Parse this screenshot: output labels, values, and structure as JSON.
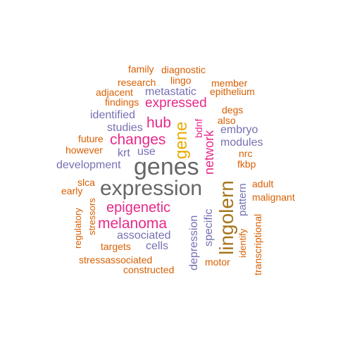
{
  "palette": {
    "orange": "#d95f02",
    "purple": "#7570b3",
    "magenta": "#e7298a",
    "gold": "#e6ab02",
    "olive": "#a6761d",
    "gray": "#666666"
  },
  "words": [
    {
      "id": "genes",
      "text": "genes",
      "color": "gray"
    },
    {
      "id": "expression",
      "text": "expression",
      "color": "gray"
    },
    {
      "id": "lingolern",
      "text": "lingolern",
      "color": "olive"
    },
    {
      "id": "gene",
      "text": "gene",
      "color": "gold"
    },
    {
      "id": "changes",
      "text": "changes",
      "color": "magenta"
    },
    {
      "id": "hub",
      "text": "hub",
      "color": "magenta"
    },
    {
      "id": "expressed",
      "text": "expressed",
      "color": "magenta"
    },
    {
      "id": "network",
      "text": "network",
      "color": "magenta"
    },
    {
      "id": "epigenetic",
      "text": "epigenetic",
      "color": "magenta"
    },
    {
      "id": "melanoma",
      "text": "melanoma",
      "color": "magenta"
    },
    {
      "id": "metastatic",
      "text": "metastatic",
      "color": "purple"
    },
    {
      "id": "identified",
      "text": "identified",
      "color": "purple"
    },
    {
      "id": "studies",
      "text": "studies",
      "color": "purple"
    },
    {
      "id": "krt",
      "text": "krt",
      "color": "purple"
    },
    {
      "id": "use",
      "text": "use",
      "color": "purple"
    },
    {
      "id": "development",
      "text": "development",
      "color": "purple"
    },
    {
      "id": "embryo",
      "text": "embryo",
      "color": "purple"
    },
    {
      "id": "modules",
      "text": "modules",
      "color": "purple"
    },
    {
      "id": "associated",
      "text": "associated",
      "color": "purple"
    },
    {
      "id": "cells",
      "text": "cells",
      "color": "purple"
    },
    {
      "id": "depression",
      "text": "depression",
      "color": "purple"
    },
    {
      "id": "specific",
      "text": "specific",
      "color": "purple"
    },
    {
      "id": "pattern",
      "text": "pattern",
      "color": "purple"
    },
    {
      "id": "bdnf",
      "text": "bdnf",
      "color": "magenta"
    },
    {
      "id": "family",
      "text": "family",
      "color": "orange"
    },
    {
      "id": "diagnostic",
      "text": "diagnostic",
      "color": "orange"
    },
    {
      "id": "research",
      "text": "research",
      "color": "orange"
    },
    {
      "id": "lingo",
      "text": "lingo",
      "color": "orange"
    },
    {
      "id": "member",
      "text": "member",
      "color": "orange"
    },
    {
      "id": "adjacent",
      "text": "adjacent",
      "color": "orange"
    },
    {
      "id": "epithelium",
      "text": "epithelium",
      "color": "orange"
    },
    {
      "id": "findings",
      "text": "findings",
      "color": "orange"
    },
    {
      "id": "degs",
      "text": "degs",
      "color": "orange"
    },
    {
      "id": "also",
      "text": "also",
      "color": "orange"
    },
    {
      "id": "future",
      "text": "future",
      "color": "orange"
    },
    {
      "id": "however",
      "text": "however",
      "color": "orange"
    },
    {
      "id": "nrc",
      "text": "nrc",
      "color": "orange"
    },
    {
      "id": "fkbp",
      "text": "fkbp",
      "color": "orange"
    },
    {
      "id": "slca",
      "text": "slca",
      "color": "orange"
    },
    {
      "id": "early",
      "text": "early",
      "color": "orange"
    },
    {
      "id": "adult",
      "text": "adult",
      "color": "orange"
    },
    {
      "id": "malignant",
      "text": "malignant",
      "color": "orange"
    },
    {
      "id": "regulatory",
      "text": "regulatory",
      "color": "orange"
    },
    {
      "id": "stressors",
      "text": "stressors",
      "color": "orange"
    },
    {
      "id": "identify",
      "text": "identify",
      "color": "orange"
    },
    {
      "id": "transcriptional",
      "text": "transcriptional",
      "color": "orange"
    },
    {
      "id": "targets",
      "text": "targets",
      "color": "orange"
    },
    {
      "id": "stressassociated",
      "text": "stressassociated",
      "color": "orange"
    },
    {
      "id": "motor",
      "text": "motor",
      "color": "orange"
    },
    {
      "id": "constructed",
      "text": "constructed",
      "color": "orange"
    }
  ]
}
